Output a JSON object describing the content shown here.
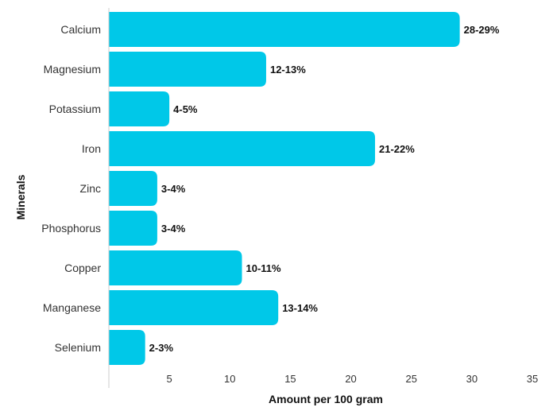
{
  "chart_data": {
    "type": "bar",
    "orientation": "horizontal",
    "categories": [
      "Calcium",
      "Magnesium",
      "Potassium",
      "Iron",
      "Zinc",
      "Phosphorus",
      "Copper",
      "Manganese",
      "Selenium"
    ],
    "values": [
      29,
      13,
      5,
      22,
      4,
      4,
      11,
      14,
      3
    ],
    "data_labels": [
      "28-29%",
      "12-13%",
      "4-5%",
      "21-22%",
      "3-4%",
      "3-4%",
      "10-11%",
      "13-14%",
      "2-3%"
    ],
    "xlabel": "Amount per 100 gram",
    "ylabel": "Minerals",
    "xlim": [
      0,
      35
    ],
    "xticks": [
      "5",
      "10",
      "15",
      "20",
      "25",
      "30",
      "35"
    ],
    "grid": false,
    "colors": {
      "bar": "#00c8e8",
      "text": "#333333"
    }
  }
}
